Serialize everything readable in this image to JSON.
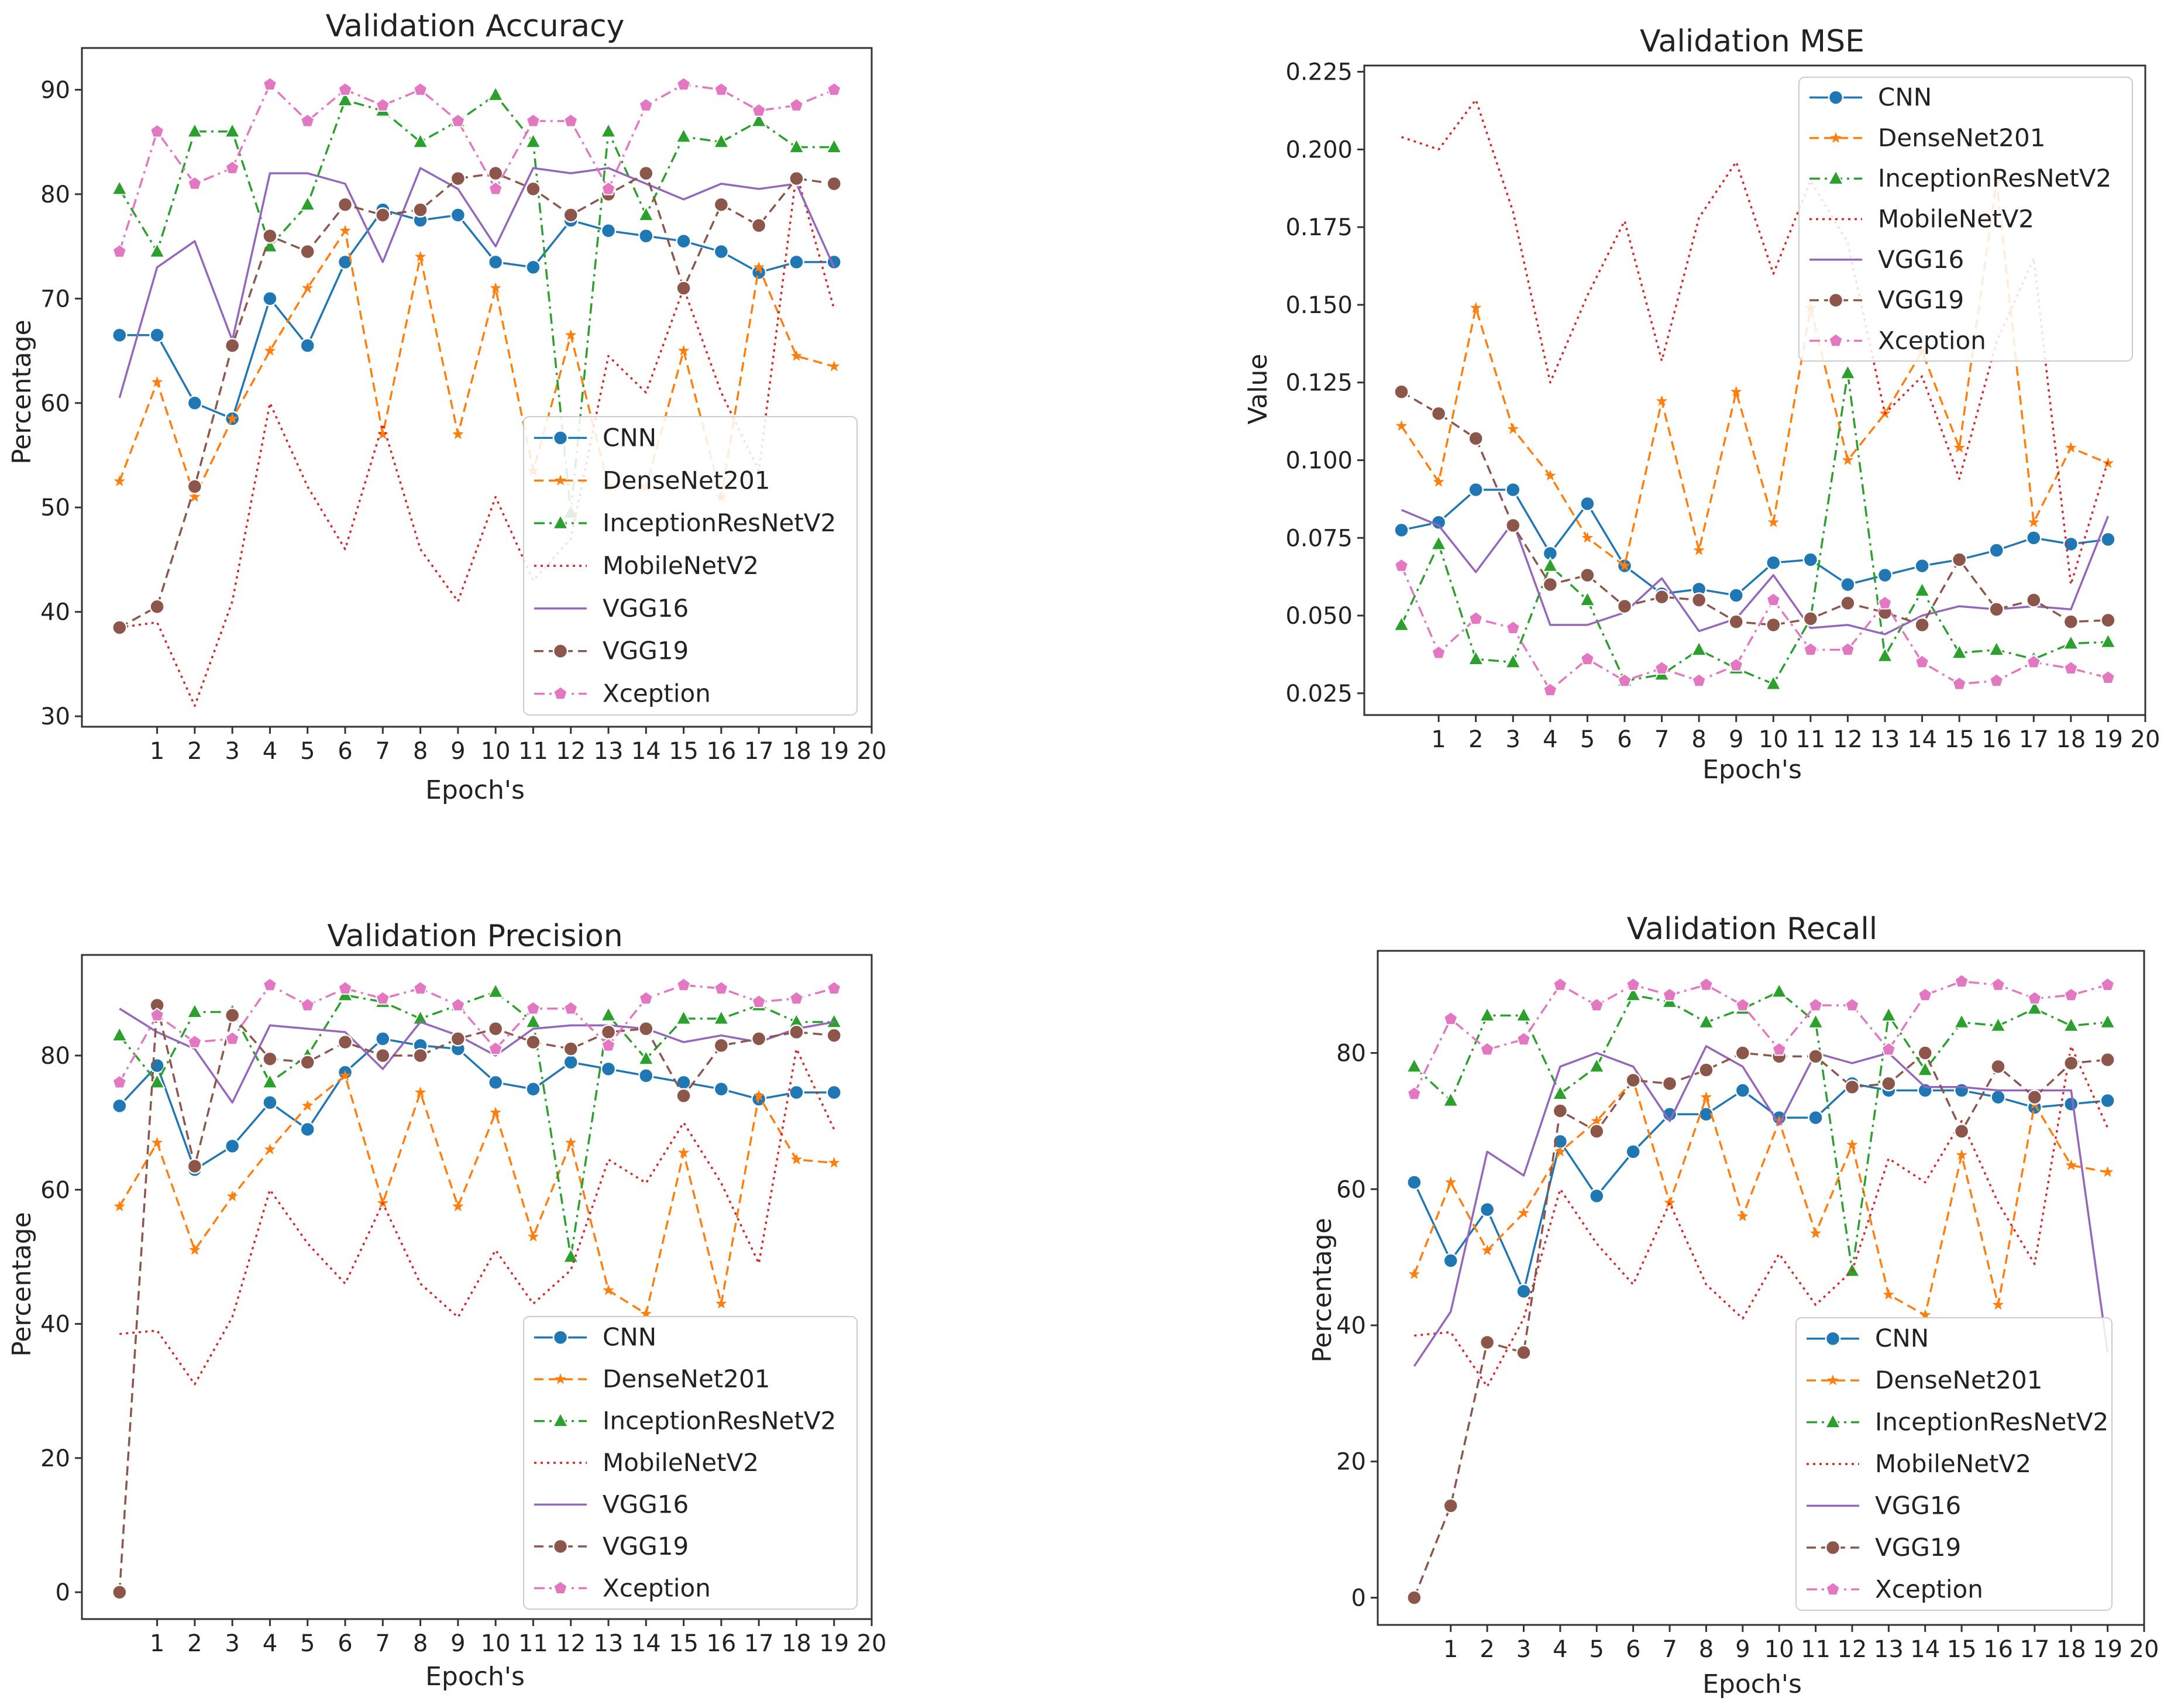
{
  "series_style": [
    {
      "name": "CNN",
      "color": "#1f77b4",
      "dash": "solid",
      "marker": "circle"
    },
    {
      "name": "DenseNet201",
      "color": "#ff7f0e",
      "dash": "dashed",
      "marker": "star"
    },
    {
      "name": "InceptionResNetV2",
      "color": "#2ca02c",
      "dash": "dashdot",
      "marker": "triangle"
    },
    {
      "name": "MobileNetV2",
      "color": "#d62728",
      "dash": "dotted",
      "marker": "none"
    },
    {
      "name": "VGG16",
      "color": "#9467bd",
      "dash": "solid",
      "marker": "none"
    },
    {
      "name": "VGG19",
      "color": "#8c564b",
      "dash": "dashed",
      "marker": "circle"
    },
    {
      "name": "Xception",
      "color": "#e377c2",
      "dash": "dashdot",
      "marker": "pentagon"
    }
  ],
  "chart_data": [
    {
      "type": "line",
      "title": "Validation Accuracy",
      "xlabel": "Epoch's",
      "ylabel": "Percentage",
      "xlim": [
        -1,
        20
      ],
      "ylim": [
        29,
        94
      ],
      "x_ticks": [
        1,
        2,
        3,
        4,
        5,
        6,
        7,
        8,
        9,
        10,
        11,
        12,
        13,
        14,
        15,
        16,
        17,
        18,
        19,
        20
      ],
      "y_ticks": [
        30,
        40,
        50,
        60,
        70,
        80,
        90
      ],
      "legend": "lower-right",
      "x": [
        0,
        1,
        2,
        3,
        4,
        5,
        6,
        7,
        8,
        9,
        10,
        11,
        12,
        13,
        14,
        15,
        16,
        17,
        18,
        19
      ],
      "series": [
        {
          "name": "CNN",
          "values": [
            66.5,
            66.5,
            60,
            58.5,
            70,
            65.5,
            73.5,
            78.5,
            77.5,
            78,
            73.5,
            73,
            77.5,
            76.5,
            76,
            75.5,
            74.5,
            72.5,
            73.5,
            73.5
          ]
        },
        {
          "name": "DenseNet201",
          "values": [
            52.5,
            62,
            51,
            58.5,
            65,
            71,
            76.5,
            57,
            74,
            57,
            71,
            53.5,
            66.5,
            52,
            52,
            65,
            51,
            73,
            64.5,
            63.5
          ]
        },
        {
          "name": "InceptionResNetV2",
          "values": [
            80.5,
            74.5,
            86,
            86,
            75,
            79,
            89,
            88,
            85,
            87,
            89.5,
            85,
            49.5,
            86,
            78,
            85.5,
            85,
            87,
            84.5,
            84.5
          ]
        },
        {
          "name": "MobileNetV2",
          "values": [
            38.5,
            39,
            31,
            41,
            60,
            52,
            46,
            58,
            46,
            41,
            51,
            43,
            47,
            64.5,
            61,
            71,
            61,
            53.5,
            82,
            69
          ]
        },
        {
          "name": "VGG16",
          "values": [
            60.5,
            73,
            75.5,
            66,
            82,
            82,
            81,
            73.5,
            82.5,
            80.5,
            75,
            82.5,
            82,
            82.5,
            81,
            79.5,
            81,
            80.5,
            81,
            73
          ]
        },
        {
          "name": "VGG19",
          "values": [
            38.5,
            40.5,
            52,
            65.5,
            76,
            74.5,
            79,
            78,
            78.5,
            81.5,
            82,
            80.5,
            78,
            80,
            82,
            71,
            79,
            77,
            81.5,
            81
          ]
        },
        {
          "name": "Xception",
          "values": [
            74.5,
            86,
            81,
            82.5,
            90.5,
            87,
            90,
            88.5,
            90,
            87,
            80.5,
            87,
            87,
            80.5,
            88.5,
            90.5,
            90,
            88,
            88.5,
            90
          ]
        }
      ]
    },
    {
      "type": "line",
      "title": "Validation MSE",
      "xlabel": "Epoch's",
      "ylabel": "Value",
      "xlim": [
        -1,
        20
      ],
      "ylim": [
        0.018,
        0.227
      ],
      "x_ticks": [
        1,
        2,
        3,
        4,
        5,
        6,
        7,
        8,
        9,
        10,
        11,
        12,
        13,
        14,
        15,
        16,
        17,
        18,
        19,
        20
      ],
      "y_ticks": [
        0.025,
        0.05,
        0.075,
        0.1,
        0.125,
        0.15,
        0.175,
        0.2,
        0.225
      ],
      "y_tick_labels": [
        "0.025",
        "0.050",
        "0.075",
        "0.100",
        "0.125",
        "0.150",
        "0.175",
        "0.200",
        "0.225"
      ],
      "legend": "top-right",
      "x": [
        0,
        1,
        2,
        3,
        4,
        5,
        6,
        7,
        8,
        9,
        10,
        11,
        12,
        13,
        14,
        15,
        16,
        17,
        18,
        19
      ],
      "series": [
        {
          "name": "CNN",
          "values": [
            0.0775,
            0.08,
            0.0905,
            0.0905,
            0.07,
            0.086,
            0.066,
            0.057,
            0.0585,
            0.0565,
            0.067,
            0.068,
            0.06,
            0.063,
            0.066,
            0.068,
            0.071,
            0.075,
            0.073,
            0.0745
          ]
        },
        {
          "name": "DenseNet201",
          "values": [
            0.111,
            0.093,
            0.149,
            0.11,
            0.095,
            0.075,
            0.066,
            0.119,
            0.071,
            0.122,
            0.08,
            0.149,
            0.1,
            0.115,
            0.135,
            0.104,
            0.19,
            0.08,
            0.104,
            0.099
          ]
        },
        {
          "name": "InceptionResNetV2",
          "values": [
            0.047,
            0.073,
            0.036,
            0.035,
            0.066,
            0.055,
            0.029,
            0.031,
            0.039,
            0.033,
            0.028,
            0.049,
            0.128,
            0.037,
            0.058,
            0.038,
            0.039,
            0.036,
            0.041,
            0.0415
          ]
        },
        {
          "name": "MobileNetV2",
          "values": [
            0.204,
            0.2,
            0.216,
            0.18,
            0.125,
            0.153,
            0.177,
            0.132,
            0.178,
            0.196,
            0.16,
            0.19,
            0.17,
            0.115,
            0.127,
            0.094,
            0.138,
            0.165,
            0.06,
            0.1
          ]
        },
        {
          "name": "VGG16",
          "values": [
            0.084,
            0.079,
            0.064,
            0.08,
            0.047,
            0.047,
            0.051,
            0.062,
            0.045,
            0.049,
            0.063,
            0.046,
            0.047,
            0.044,
            0.05,
            0.053,
            0.052,
            0.053,
            0.052,
            0.082
          ]
        },
        {
          "name": "VGG19",
          "values": [
            0.122,
            0.115,
            0.107,
            0.079,
            0.06,
            0.063,
            0.053,
            0.056,
            0.055,
            0.048,
            0.047,
            0.049,
            0.054,
            0.051,
            0.047,
            0.068,
            0.052,
            0.055,
            0.048,
            0.0485
          ]
        },
        {
          "name": "Xception",
          "values": [
            0.066,
            0.038,
            0.049,
            0.046,
            0.026,
            0.036,
            0.029,
            0.033,
            0.029,
            0.034,
            0.055,
            0.039,
            0.039,
            0.054,
            0.035,
            0.028,
            0.029,
            0.035,
            0.033,
            0.03
          ]
        }
      ]
    },
    {
      "type": "line",
      "title": "Validation Precision",
      "xlabel": "Epoch's",
      "ylabel": "Percentage",
      "xlim": [
        -1,
        20
      ],
      "ylim": [
        -4,
        95
      ],
      "x_ticks": [
        1,
        2,
        3,
        4,
        5,
        6,
        7,
        8,
        9,
        10,
        11,
        12,
        13,
        14,
        15,
        16,
        17,
        18,
        19,
        20
      ],
      "y_ticks": [
        0,
        20,
        40,
        60,
        80
      ],
      "legend": "lower-right",
      "x": [
        0,
        1,
        2,
        3,
        4,
        5,
        6,
        7,
        8,
        9,
        10,
        11,
        12,
        13,
        14,
        15,
        16,
        17,
        18,
        19
      ],
      "series": [
        {
          "name": "CNN",
          "values": [
            72.5,
            78.5,
            63,
            66.5,
            73,
            69,
            77.5,
            82.5,
            81.5,
            81,
            76,
            75,
            79,
            78,
            77,
            76,
            75,
            73.5,
            74.5,
            74.5
          ]
        },
        {
          "name": "DenseNet201",
          "values": [
            57.5,
            67,
            51,
            59,
            66,
            72.5,
            77,
            58,
            74.5,
            57.5,
            71.5,
            53,
            67,
            45,
            41.5,
            65.5,
            43,
            74,
            64.5,
            64
          ]
        },
        {
          "name": "InceptionResNetV2",
          "values": [
            83,
            76,
            86.5,
            86.5,
            76,
            80,
            89,
            88,
            85.5,
            87.5,
            89.5,
            85,
            50,
            86,
            79.5,
            85.5,
            85.5,
            87.5,
            85,
            85
          ]
        },
        {
          "name": "MobileNetV2",
          "values": [
            38.5,
            39,
            31,
            41,
            60,
            52,
            46,
            58,
            46,
            41,
            51,
            43,
            48,
            64.5,
            61,
            70,
            61,
            49,
            81,
            69
          ]
        },
        {
          "name": "VGG16",
          "values": [
            87,
            83.5,
            81,
            73,
            84.5,
            84,
            83.5,
            78,
            85,
            83,
            80,
            84,
            84.5,
            84.5,
            84,
            82,
            83,
            82,
            84,
            85
          ]
        },
        {
          "name": "VGG19",
          "values": [
            0,
            87.5,
            63.5,
            86,
            79.5,
            79,
            82,
            80,
            80,
            82.5,
            84,
            82,
            81,
            83.5,
            84,
            74,
            81.5,
            82.5,
            83.5,
            83
          ]
        },
        {
          "name": "Xception",
          "values": [
            76,
            86,
            82,
            82.5,
            90.5,
            87.5,
            90,
            88.5,
            90,
            87.5,
            81,
            87,
            87,
            81.5,
            88.5,
            90.5,
            90,
            88,
            88.5,
            90
          ]
        }
      ]
    },
    {
      "type": "line",
      "title": "Validation Recall",
      "xlabel": "Epoch's",
      "ylabel": "Percentage",
      "xlim": [
        -1,
        20
      ],
      "ylim": [
        -4,
        95
      ],
      "x_ticks": [
        1,
        2,
        3,
        4,
        5,
        6,
        7,
        8,
        9,
        10,
        11,
        12,
        13,
        14,
        15,
        16,
        17,
        18,
        19,
        20
      ],
      "y_ticks": [
        0,
        20,
        40,
        60,
        80
      ],
      "legend": "lower-right",
      "x": [
        0,
        1,
        2,
        3,
        4,
        5,
        6,
        7,
        8,
        9,
        10,
        11,
        12,
        13,
        14,
        15,
        16,
        17,
        18,
        19
      ],
      "series": [
        {
          "name": "CNN",
          "values": [
            61,
            49.5,
            57,
            45,
            67,
            59,
            65.5,
            71,
            71,
            74.5,
            70.5,
            70.5,
            75.5,
            74.5,
            74.5,
            74.5,
            73.5,
            72,
            72.5,
            73
          ]
        },
        {
          "name": "DenseNet201",
          "values": [
            47.5,
            61,
            51,
            56.5,
            65.5,
            70,
            76,
            58,
            73.5,
            56,
            70,
            53.5,
            66.5,
            44.5,
            41.5,
            65,
            43,
            72.5,
            63.5,
            62.5
          ]
        },
        {
          "name": "InceptionResNetV2",
          "values": [
            78,
            73,
            85.5,
            85.5,
            74,
            78,
            88.5,
            87.5,
            84.5,
            86.5,
            89,
            84.5,
            48,
            85.5,
            77.5,
            84.5,
            84,
            86.5,
            84,
            84.5
          ]
        },
        {
          "name": "MobileNetV2",
          "values": [
            38.5,
            39,
            31,
            41,
            60,
            52,
            46,
            58,
            46,
            41,
            50.5,
            43,
            48,
            64.5,
            61,
            70,
            58,
            49,
            81,
            69
          ]
        },
        {
          "name": "VGG16",
          "values": [
            34,
            42,
            65.5,
            62,
            78,
            80,
            78,
            70,
            81,
            78,
            69.5,
            80,
            78.5,
            80,
            75,
            75,
            74.5,
            74.5,
            74.5,
            36
          ]
        },
        {
          "name": "VGG19",
          "values": [
            0,
            13.5,
            37.5,
            36,
            71.5,
            68.5,
            76,
            75.5,
            77.5,
            80,
            79.5,
            79.5,
            75,
            75.5,
            80,
            68.5,
            78,
            73.5,
            78.5,
            79
          ]
        },
        {
          "name": "Xception",
          "values": [
            74,
            85,
            80.5,
            82,
            90,
            87,
            90,
            88.5,
            90,
            87,
            80.5,
            87,
            87,
            80.5,
            88.5,
            90.5,
            90,
            88,
            88.5,
            90
          ]
        }
      ]
    }
  ]
}
